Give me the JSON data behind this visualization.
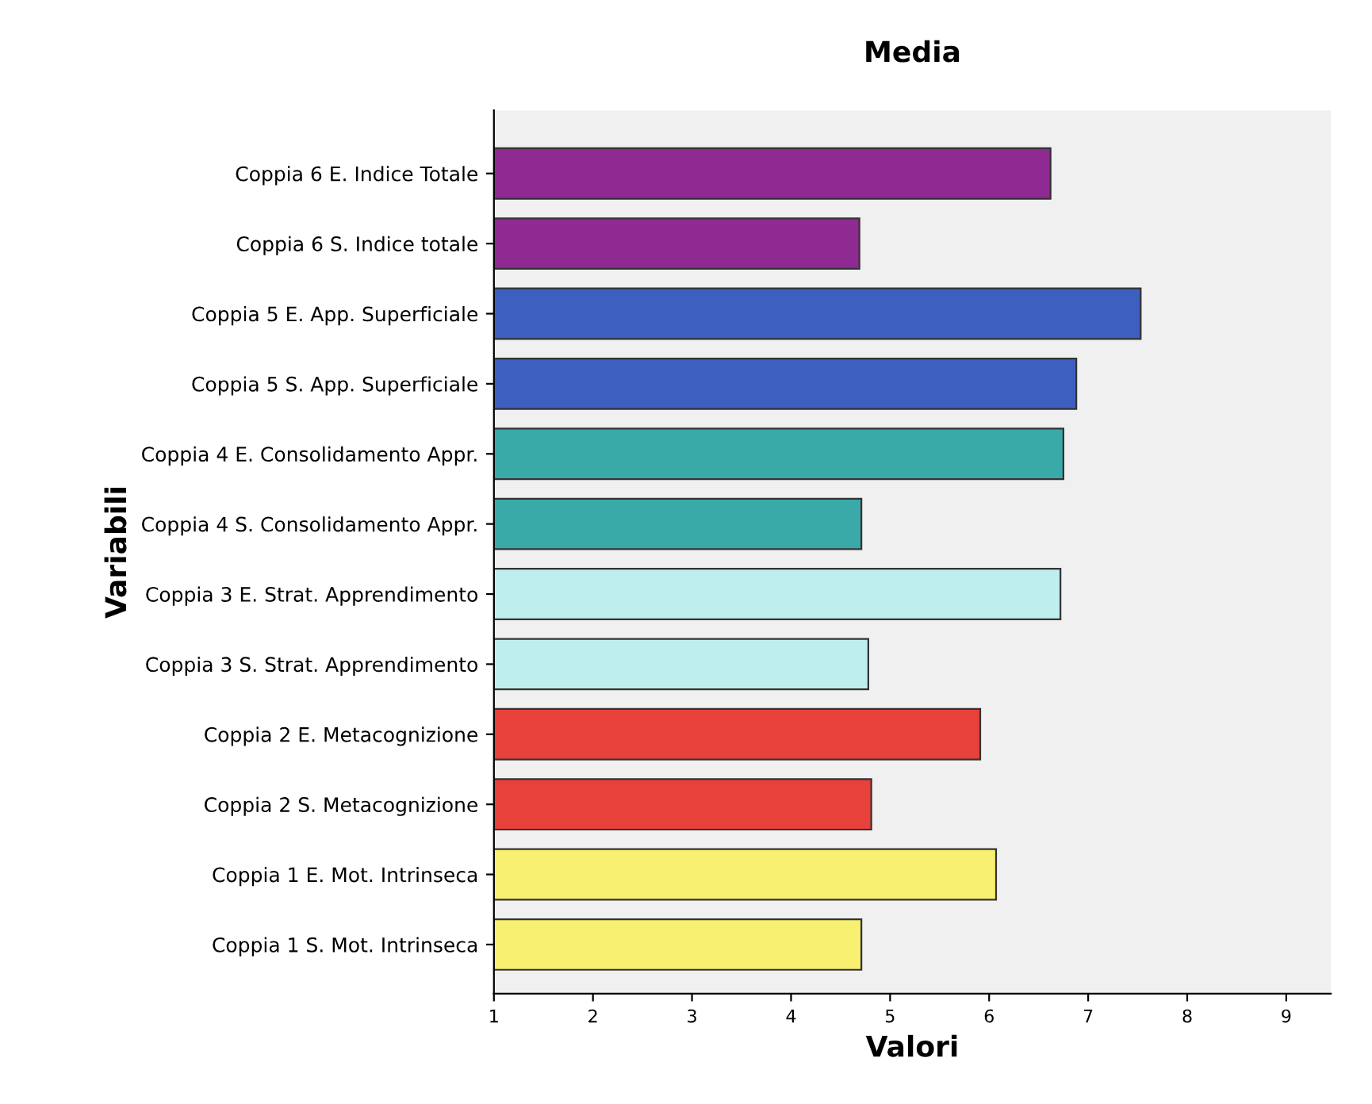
{
  "chart_data": {
    "type": "bar",
    "orientation": "horizontal",
    "title": "Media",
    "xlabel": "Valori",
    "ylabel": "Variabili",
    "categories": [
      "Coppia 6 E. Indice Totale",
      "Coppia 6 S. Indice totale",
      "Coppia 5 E. App. Superficiale",
      "Coppia 5 S. App. Superficiale",
      "Coppia 4 E. Consolidamento Appr.",
      "Coppia 4 S. Consolidamento Appr.",
      "Coppia 3 E. Strat. Apprendimento",
      "Coppia 3 S. Strat. Apprendimento",
      "Coppia 2 E. Metacognizione",
      "Coppia 2 S. Metacognizione",
      "Coppia 1 E. Mot. Intrinseca",
      "Coppia 1 S. Mot. Intrinseca"
    ],
    "base": [
      1,
      1,
      1,
      1,
      1,
      1,
      1,
      1,
      1,
      1,
      1,
      1
    ],
    "values": [
      5.62,
      3.69,
      6.53,
      5.88,
      5.75,
      3.71,
      5.72,
      3.78,
      4.91,
      3.81,
      5.07,
      3.71
    ],
    "colors": [
      "#8e2a92",
      "#8e2a92",
      "#3d5fbf",
      "#3d5fbf",
      "#3aaaa8",
      "#3aaaa8",
      "#bfeeee",
      "#bfeeee",
      "#e8403a",
      "#e8403a",
      "#f8f070",
      "#f8f070"
    ],
    "xlim": [
      1,
      9.45
    ],
    "xticks": [
      1,
      2,
      3,
      4,
      5,
      6,
      7,
      8,
      9
    ],
    "grid": false,
    "legend": false
  }
}
